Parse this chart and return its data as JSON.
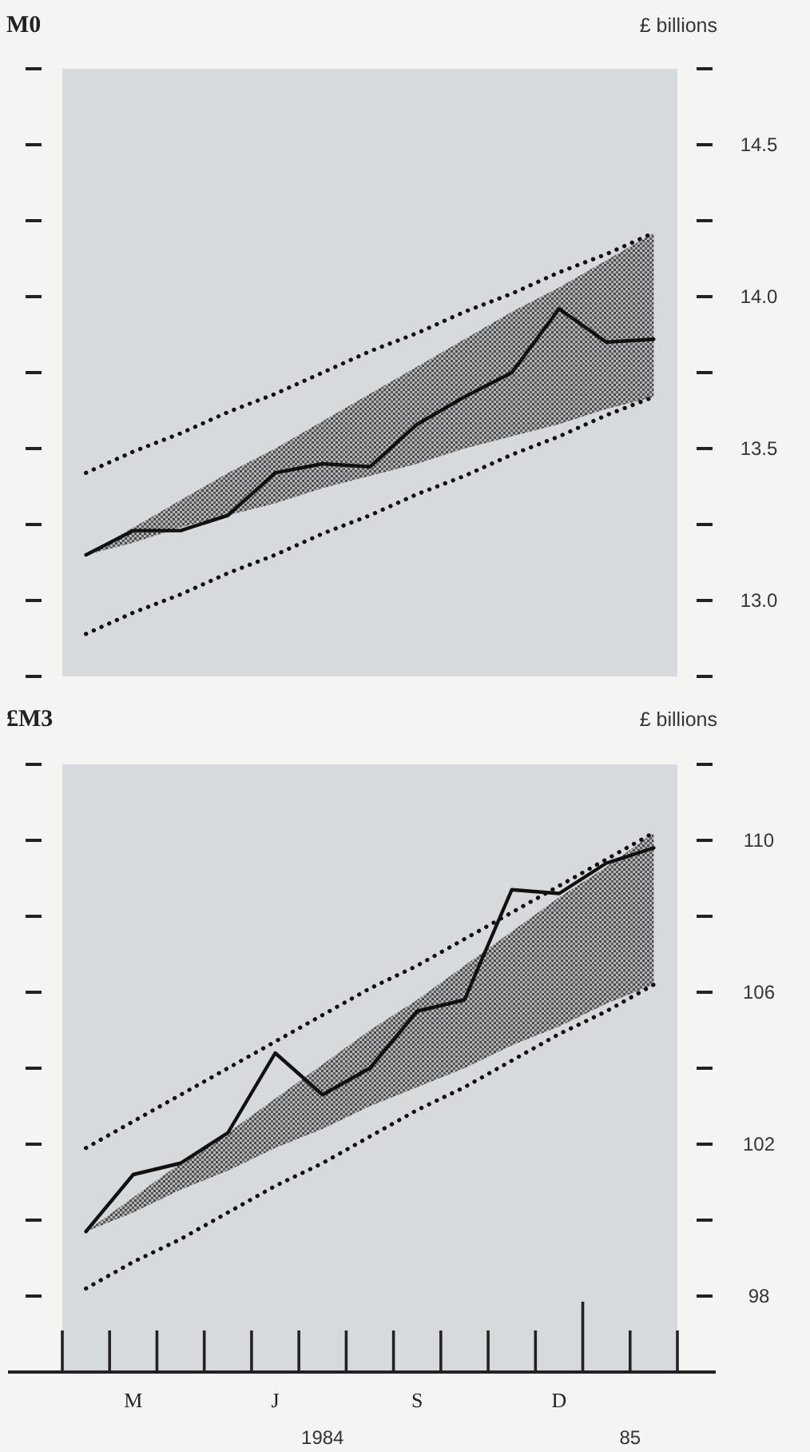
{
  "chart_data": [
    {
      "type": "line",
      "title": "M0",
      "ylabel": "£ billions",
      "categories": [
        null,
        null,
        null,
        null,
        null,
        null,
        null,
        null,
        null,
        null,
        null,
        null,
        null
      ],
      "ylim": [
        12.75,
        14.75
      ],
      "yticks": [
        {
          "value": 12.75,
          "label": null
        },
        {
          "value": 13,
          "label": "13.0"
        },
        {
          "value": 13.25,
          "label": null
        },
        13.5,
        {
          "value": 13.75,
          "label": null
        },
        {
          "value": 14,
          "label": "14.0"
        },
        {
          "value": 14.25,
          "label": null
        },
        14.5,
        {
          "value": 14.75,
          "label": null
        }
      ],
      "tick_labels": "y",
      "grid": false,
      "marker": "none",
      "series": [
        {
          "color": "#111111",
          "line_style": "solid",
          "values": [
            13.15,
            13.23,
            13.23,
            13.28,
            13.42,
            13.45,
            13.44,
            13.58,
            13.67,
            13.75,
            13.96,
            13.85,
            13.86
          ],
          "lower": [
            13.15,
            13.19,
            13.24,
            13.28,
            13.32,
            13.37,
            13.41,
            13.45,
            13.5,
            13.54,
            13.58,
            13.63,
            13.67
          ],
          "upper": [
            13.15,
            13.24,
            13.33,
            13.42,
            13.5,
            13.59,
            13.68,
            13.77,
            13.86,
            13.95,
            14.03,
            14.12,
            14.21
          ]
        },
        {
          "color": "#111111",
          "line_style": "dotted",
          "values": [
            13.42,
            13.49,
            13.55,
            13.62,
            13.68,
            13.75,
            13.82,
            13.88,
            13.95,
            14.01,
            14.08,
            14.14,
            14.21
          ]
        },
        {
          "color": "#111111",
          "line_style": "dotted",
          "values": [
            12.89,
            12.96,
            13.02,
            13.09,
            13.15,
            13.22,
            13.28,
            13.35,
            13.41,
            13.48,
            13.54,
            13.61,
            13.67
          ]
        }
      ]
    },
    {
      "type": "line",
      "title": "£M3",
      "ylabel": "£ billions",
      "categories": [
        null,
        "M",
        null,
        null,
        "J",
        null,
        null,
        "S",
        null,
        null,
        "D",
        null,
        null
      ],
      "ylim": [
        96,
        112
      ],
      "yticks": [
        {
          "value": 96,
          "label": null
        },
        98,
        {
          "value": 100,
          "label": null
        },
        102,
        {
          "value": 104,
          "label": null
        },
        106,
        {
          "value": 108,
          "label": null
        },
        110,
        {
          "value": 112,
          "label": null
        }
      ],
      "grid": false,
      "marker": "none",
      "annotations": [
        "1984",
        "85"
      ],
      "series": [
        {
          "color": "#111111",
          "line_style": "solid",
          "values": [
            99.7,
            101.2,
            101.5,
            102.3,
            104.4,
            103.3,
            104.0,
            105.5,
            105.8,
            108.7,
            108.6,
            109.4,
            109.8
          ],
          "lower": [
            99.7,
            100.2,
            100.8,
            101.3,
            101.9,
            102.4,
            103.0,
            103.5,
            104.0,
            104.6,
            105.1,
            105.7,
            106.2
          ],
          "upper": [
            99.7,
            100.6,
            101.5,
            102.3,
            103.2,
            104.1,
            105.0,
            105.8,
            106.7,
            107.6,
            108.5,
            109.3,
            110.2
          ]
        },
        {
          "color": "#111111",
          "line_style": "dotted",
          "values": [
            101.9,
            102.6,
            103.3,
            104.0,
            104.7,
            105.4,
            106.1,
            106.7,
            107.4,
            108.1,
            108.8,
            109.5,
            110.2
          ]
        },
        {
          "color": "#111111",
          "line_style": "dotted",
          "values": [
            98.2,
            98.9,
            99.5,
            100.2,
            100.9,
            101.5,
            102.2,
            102.9,
            103.5,
            104.2,
            104.9,
            105.5,
            106.2
          ]
        }
      ]
    }
  ]
}
